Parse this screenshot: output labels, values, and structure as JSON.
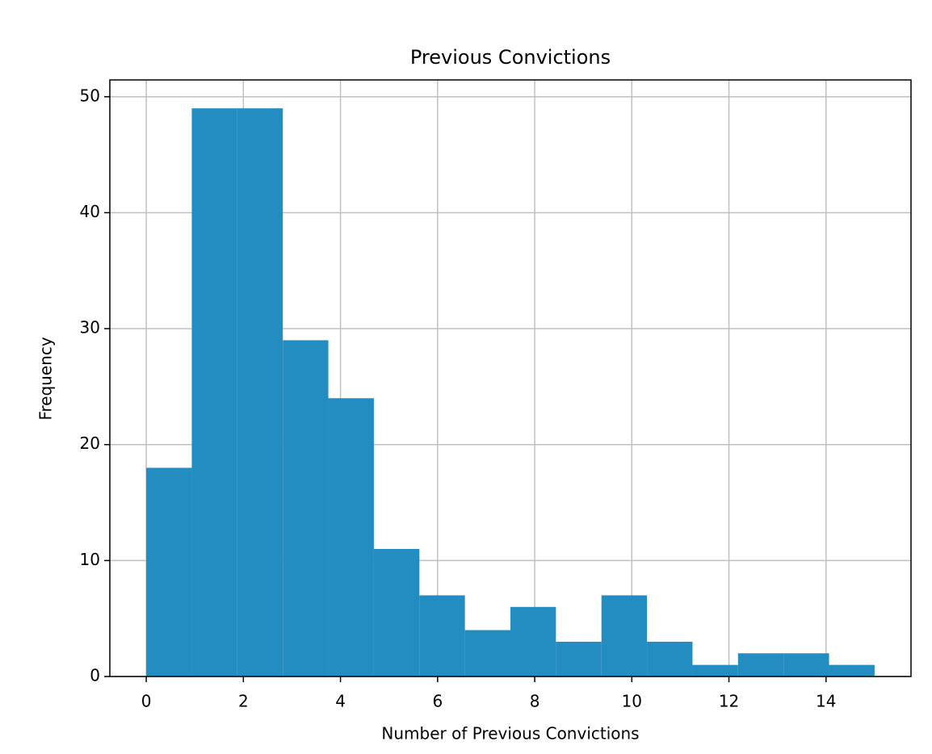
{
  "chart_data": {
    "type": "histogram",
    "title": "Previous Convictions",
    "x_label": "Number of Previous Convictions",
    "y_label": "Frequency",
    "bins": [
      0,
      0.9375,
      1.875,
      2.8125,
      3.75,
      4.6875,
      5.625,
      6.5625,
      7.5,
      8.4375,
      9.375,
      10.3125,
      11.25,
      12.1875,
      13.125,
      14.0625,
      15
    ],
    "values": [
      18,
      49,
      49,
      29,
      24,
      11,
      7,
      4,
      6,
      3,
      7,
      3,
      1,
      2,
      2,
      1
    ],
    "color": "#238cc0",
    "xlim": [
      -0.75,
      15.75
    ],
    "xticks": [
      0,
      2,
      4,
      6,
      8,
      10,
      12,
      14
    ],
    "ylim": [
      0,
      51.45
    ],
    "yticks": [
      0,
      10,
      20,
      30,
      40,
      50
    ],
    "grid": true
  }
}
